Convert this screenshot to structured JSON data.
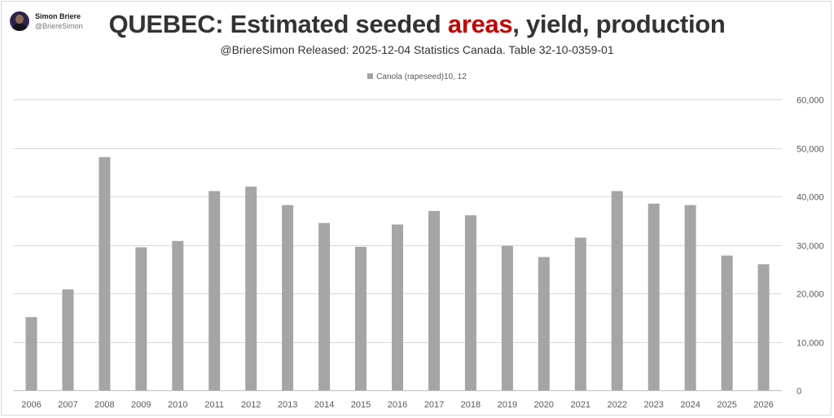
{
  "author": {
    "name": "Simon Briere",
    "handle": "@BriereSimon"
  },
  "header": {
    "title_pre": "QUEBEC: Estimated seeded ",
    "title_highlight": "areas",
    "title_post": ", yield, production",
    "subtitle": "@BriereSimon Released:  2025-12-04 Statistics Canada. Table 32-10-0359-01"
  },
  "colors": {
    "bar": "#a5a5a5",
    "highlight": "#c00000",
    "grid": "#d9d9d9"
  },
  "chart_data": {
    "type": "bar",
    "title": "QUEBEC: Estimated seeded areas, yield, production",
    "subtitle": "@BriereSimon Released:  2025-12-04 Statistics Canada. Table 32-10-0359-01",
    "xlabel": "",
    "ylabel": "",
    "y_axis_side": "right",
    "ylim": [
      0,
      60000
    ],
    "yticks": [
      0,
      10000,
      20000,
      30000,
      40000,
      50000,
      60000
    ],
    "ytick_labels": [
      "0",
      "10,000",
      "20,000",
      "30,000",
      "40,000",
      "50,000",
      "60,000"
    ],
    "grid": true,
    "legend_position": "top",
    "categories": [
      "2006",
      "2007",
      "2008",
      "2009",
      "2010",
      "2011",
      "2012",
      "2013",
      "2014",
      "2015",
      "2016",
      "2017",
      "2018",
      "2019",
      "2020",
      "2021",
      "2022",
      "2023",
      "2024",
      "2025",
      "2026"
    ],
    "series": [
      {
        "name": "Canola (rapeseed)10, 12",
        "values": [
          15100,
          20800,
          48100,
          29500,
          30800,
          41100,
          42000,
          38200,
          34500,
          29600,
          34200,
          37000,
          36100,
          29800,
          27500,
          31500,
          41100,
          38500,
          38200,
          27800,
          26000
        ]
      }
    ]
  }
}
